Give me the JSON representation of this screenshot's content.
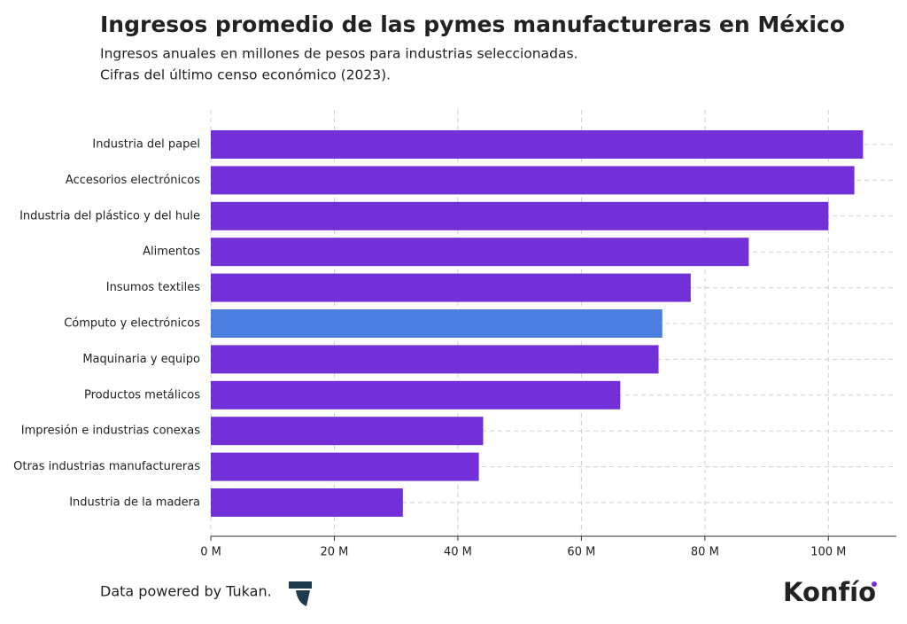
{
  "chart_data": {
    "type": "barh",
    "title": "Ingresos promedio de las pymes manufactureras en México",
    "subtitle": [
      "Ingresos anuales en millones de pesos para industrias seleccionadas.",
      "Cifras del último censo económico (2023)."
    ],
    "categories": [
      "Industria del papel",
      "Accesorios electrónicos",
      "Industria del plástico y del hule",
      "Alimentos",
      "Insumos textiles",
      "Cómputo y electrónicos",
      "Maquinaria y equipo",
      "Productos metálicos",
      "Impresión e industrias conexas",
      "Otras industrias manufactureras",
      "Industria de la madera"
    ],
    "values": [
      105.6,
      104.2,
      100.0,
      87.1,
      77.7,
      73.1,
      72.5,
      66.3,
      44.1,
      43.4,
      31.1
    ],
    "colors": [
      "#7330d9",
      "#7330d9",
      "#7330d9",
      "#7330d9",
      "#7330d9",
      "#4a7fe0",
      "#7330d9",
      "#7330d9",
      "#7330d9",
      "#7330d9",
      "#7330d9"
    ],
    "xlim": [
      0,
      111
    ],
    "xticks": [
      {
        "value": 0,
        "label": "0 M"
      },
      {
        "value": 20,
        "label": "20 M"
      },
      {
        "value": 40,
        "label": "40 M"
      },
      {
        "value": 60,
        "label": "60 M"
      },
      {
        "value": 80,
        "label": "80 M"
      },
      {
        "value": 100,
        "label": "100 M"
      }
    ],
    "grid": true
  },
  "footer": {
    "source": "Data powered by Tukan.",
    "logo": "Konfío"
  }
}
